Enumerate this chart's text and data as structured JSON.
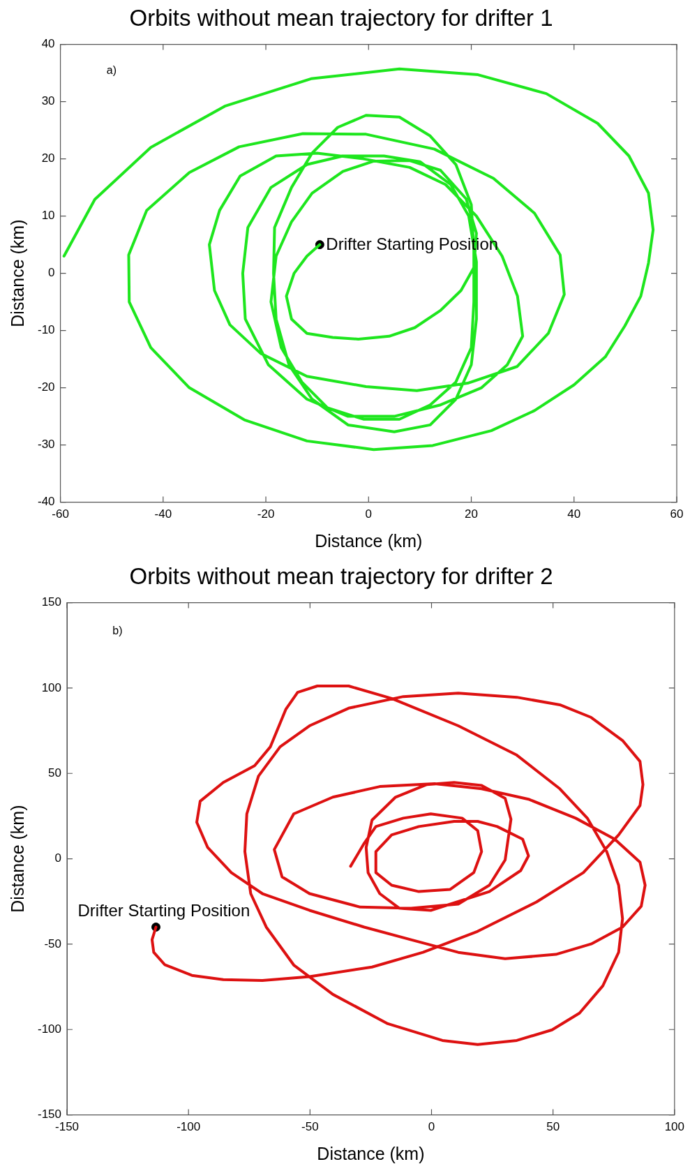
{
  "chart_data": [
    {
      "type": "line",
      "title": "Orbits without mean trajectory for drifter 1",
      "xlabel": "Distance (km)",
      "ylabel": "Distance (km)",
      "xlim": [
        -60,
        60
      ],
      "ylim": [
        -40,
        40
      ],
      "xticks": [
        -60,
        -40,
        -20,
        0,
        20,
        40,
        60
      ],
      "yticks": [
        -40,
        -30,
        -20,
        -10,
        0,
        10,
        20,
        30,
        40
      ],
      "grid": false,
      "legend": false,
      "series": [
        {
          "type": "line",
          "marker": "none",
          "color": "#1ee61e",
          "x": [
            -9.5,
            -12,
            -14.5,
            -16,
            -15,
            -12,
            -7,
            -2,
            4,
            9,
            14,
            18,
            20.5,
            21,
            19,
            14,
            8,
            1,
            -5,
            -11,
            -15,
            -18,
            -19,
            -17,
            -13,
            -8,
            -1,
            6,
            12,
            17,
            20,
            20.5,
            20.5,
            20,
            17,
            12,
            6,
            -0.5,
            -6,
            -11,
            -15,
            -18.3,
            -18.5,
            -18,
            -15.5,
            -11,
            -4,
            5,
            12,
            17,
            20,
            21,
            21,
            19.5,
            16,
            10,
            3,
            -5,
            -12,
            -19,
            -23.5,
            -24.5,
            -24,
            -19.5,
            -12,
            -4,
            5,
            14,
            22,
            27,
            30,
            29,
            26,
            21,
            15,
            8,
            -1,
            -10,
            -18,
            -25,
            -29,
            -31,
            -30,
            -27,
            -21,
            -12,
            -0.5,
            9.4,
            19.3,
            28.9,
            35,
            38.1,
            37.3,
            32.3,
            24.3,
            12.8,
            -0.5,
            -12.8,
            -25.2,
            -34.9,
            -43.2,
            -46.7,
            -46.6,
            -42.4,
            -34.9,
            -24.2,
            -12,
            1,
            12.5,
            23.9,
            32.3,
            40,
            46.1,
            49.9,
            53,
            54.5,
            55.4,
            54.5,
            50.7,
            44.6,
            34.6,
            21.3,
            6,
            -11.2,
            -28,
            -42.4,
            -53.3,
            -59.3
          ],
          "values": [
            5,
            3,
            0,
            -4,
            -8,
            -10.5,
            -11.2,
            -11.5,
            -11,
            -9.5,
            -6.5,
            -3,
            1,
            7,
            13,
            18,
            19.7,
            19.6,
            17.8,
            14,
            9,
            3,
            -5,
            -13,
            -19,
            -23.5,
            -25.5,
            -25.5,
            -23,
            -19,
            -13,
            -5,
            4,
            12,
            19,
            24,
            27.3,
            27.6,
            25.5,
            21,
            15,
            8,
            0,
            -8,
            -16,
            -22,
            -26.5,
            -27.7,
            -26.5,
            -22,
            -16,
            -8,
            2,
            10,
            15.5,
            19.5,
            20.5,
            20.5,
            19,
            15,
            8,
            0,
            -8,
            -16,
            -22,
            -25,
            -25,
            -23,
            -20,
            -16,
            -11,
            -4,
            3,
            10,
            15.5,
            18.5,
            20,
            21,
            20.5,
            17,
            11,
            5,
            -3,
            -9,
            -14,
            -18,
            -19.8,
            -20.5,
            -19.2,
            -16.3,
            -10.5,
            -3.7,
            3.2,
            10.5,
            16.6,
            21.7,
            24.3,
            24.4,
            22.1,
            17.6,
            11,
            3.2,
            -5,
            -13,
            -20,
            -25.6,
            -29.3,
            -30.8,
            -30.1,
            -27.5,
            -24,
            -19.5,
            -14.6,
            -9.2,
            -4,
            1.8,
            7.6,
            14,
            20.5,
            26.2,
            31.4,
            34.7,
            35.7,
            34,
            29.2,
            22,
            12.9,
            3
          ]
        },
        {
          "type": "scatter",
          "marker": "circle",
          "color": "#000000",
          "x": [
            -9.5
          ],
          "values": [
            5
          ]
        }
      ],
      "annotations": [
        "a)",
        {
          "text": "Drifter Starting Position",
          "x": -9.5,
          "y": 5
        }
      ]
    },
    {
      "type": "line",
      "title": "Orbits without mean trajectory for drifter 2",
      "xlabel": "Distance (km)",
      "ylabel": "Distance (km)",
      "xlim": [
        -150,
        100
      ],
      "ylim": [
        -150,
        150
      ],
      "xticks": [
        -150,
        -100,
        -50,
        0,
        50,
        100
      ],
      "yticks": [
        -150,
        -100,
        -50,
        0,
        50,
        100,
        150
      ],
      "grid": false,
      "legend": false,
      "series": [
        {
          "type": "line",
          "marker": "none",
          "color": "#dd1111",
          "x": [
            -113.4,
            -115,
            -114.3,
            -109.8,
            -98.6,
            -85.7,
            -69.6,
            -50.2,
            -24.5,
            -3.5,
            19,
            43.2,
            62.5,
            77,
            85.8,
            87,
            85.8,
            78.6,
            65.7,
            52.8,
            35.1,
            11,
            -11.6,
            -34.1,
            -50.2,
            -62.3,
            -71.2,
            -76,
            -76.8,
            -74.4,
            -68,
            -56.7,
            -40.6,
            -18,
            4.5,
            19,
            35.1,
            49.6,
            60.9,
            70.5,
            77,
            78.6,
            77,
            72.1,
            64.1,
            52.8,
            35.1,
            11,
            -16.4,
            -34.1,
            -47,
            -55.1,
            -59.9,
            -66.3,
            -72.8,
            -85.7,
            -95.2,
            -96.6,
            -92.1,
            -82.4,
            -69.6,
            -50.2,
            -27.7,
            -8.4,
            11,
            30.3,
            51.2,
            65.7,
            78.6,
            86.3,
            87.9,
            85.8,
            75.4,
            59.3,
            39.9,
            20.6,
            1.3,
            -21.3,
            -40.6,
            -56.7,
            -64.7,
            -61.5,
            -50.2,
            -29.3,
            -8.4,
            11,
            23.8,
            30.3,
            32.7,
            30.3,
            20.6,
            9.3,
            -1.9,
            -14.8,
            -24.5,
            -26.9,
            -26.1,
            -21.3,
            -13.2,
            -0.3,
            23.8,
            36.7,
            39.9,
            37.5,
            27,
            19,
            9.3,
            -5.2,
            -16.4,
            -22.9,
            -22.9,
            -16.4,
            -5.2,
            7.7,
            17.4,
            20.6,
            19,
            12.6,
            -0.3,
            -11.6,
            -22.9,
            -27.7,
            -33.3
          ],
          "values": [
            -40,
            -47.4,
            -54.8,
            -62,
            -68.3,
            -70.8,
            -71.3,
            -69,
            -63.4,
            -54.8,
            -42.5,
            -25.3,
            -8.1,
            14,
            31.2,
            43.5,
            57,
            69.3,
            82.8,
            90.2,
            94.6,
            97,
            95,
            88.2,
            77.9,
            65.6,
            48.4,
            26.3,
            4.2,
            -20.4,
            -40,
            -62.2,
            -79.4,
            -96.6,
            -106.4,
            -108.8,
            -106.4,
            -100.2,
            -90.4,
            -74.4,
            -54.8,
            -35.1,
            -15.5,
            4.2,
            23.8,
            41,
            60.7,
            77.9,
            93.9,
            101.2,
            101.2,
            97.5,
            87.7,
            65.6,
            54.5,
            44.7,
            33.7,
            21.4,
            6.6,
            -8.1,
            -20.4,
            -30.2,
            -40,
            -47.4,
            -54.8,
            -58.5,
            -56,
            -49.9,
            -40,
            -27.8,
            -15.5,
            -2,
            11.5,
            23.8,
            34.9,
            41,
            44,
            42.3,
            36.1,
            26.3,
            5.4,
            -10.6,
            -20.4,
            -28.3,
            -29,
            -26.5,
            -15.5,
            -0.7,
            23.1,
            35.4,
            43,
            44.7,
            43.5,
            36.1,
            22.6,
            6.6,
            -8.1,
            -20.4,
            -29,
            -30.2,
            -19.2,
            -6.9,
            1.7,
            11.5,
            18.9,
            21.9,
            21.9,
            18.9,
            14,
            4.2,
            -8.1,
            -15.5,
            -19.2,
            -17.9,
            -8.1,
            4.2,
            16.5,
            23.8,
            26.3,
            23.8,
            18.9,
            9.1,
            -4.4
          ]
        },
        {
          "type": "scatter",
          "marker": "circle",
          "color": "#000000",
          "x": [
            -113.4
          ],
          "values": [
            -40
          ]
        }
      ],
      "annotations": [
        "b)",
        {
          "text": "Drifter Starting Position",
          "x": -113.4,
          "y": -40
        }
      ]
    }
  ]
}
